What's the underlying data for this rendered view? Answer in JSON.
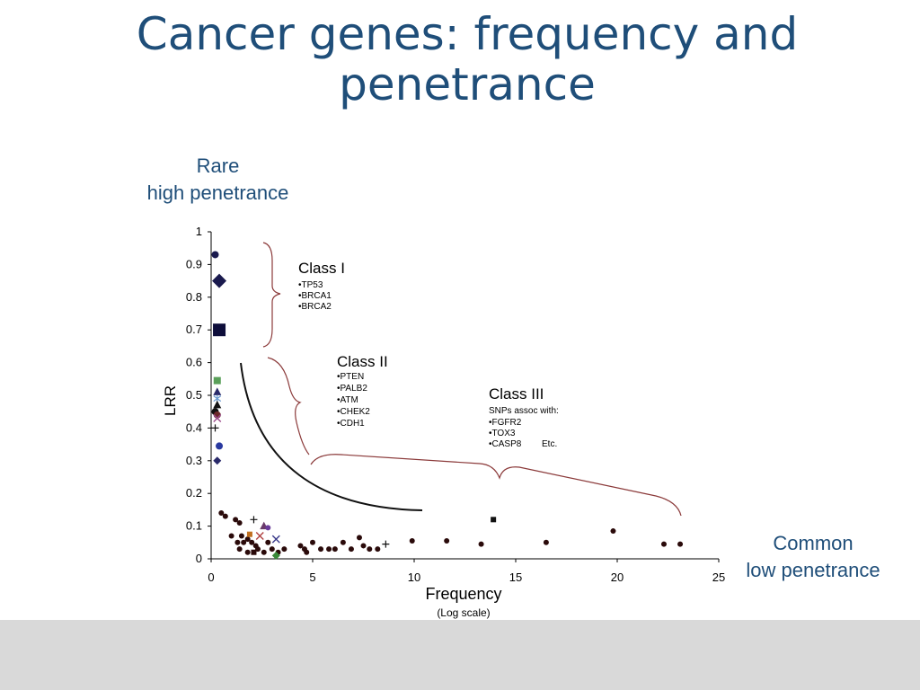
{
  "slide": {
    "title_line1": "Cancer genes: frequency and",
    "title_line2": "penetrance",
    "note_rare_line1": "Rare",
    "note_rare_line2": "high penetrance",
    "note_common_line1": "Common",
    "note_common_line2": "low penetrance"
  },
  "colors": {
    "title": "#1F4E79",
    "bracket": "#8B3A3A",
    "footer": "#d9d9d9"
  },
  "chart_data": {
    "type": "scatter",
    "xlabel": "Frequency",
    "xlabel_sub": "(Log scale)",
    "ylabel": "LRR",
    "xlim": [
      0,
      25
    ],
    "ylim": [
      0,
      1
    ],
    "x_ticks": [
      0,
      5,
      10,
      15,
      20,
      25
    ],
    "y_ticks": [
      0,
      0.1,
      0.2,
      0.3,
      0.4,
      0.5,
      0.6,
      0.7,
      0.8,
      0.9,
      1
    ],
    "grid": false,
    "annotations": [
      {
        "label": "Class I",
        "items": [
          "•TP53",
          "•BRCA1",
          "•BRCA2"
        ]
      },
      {
        "label": "Class II",
        "items": [
          "•PTEN",
          "•PALB2",
          "•ATM",
          "•CHEK2",
          "•CDH1"
        ]
      },
      {
        "label": "Class III",
        "subtitle": "SNPs assoc with:",
        "items": [
          "•FGFR2",
          "•TOX3",
          "•CASP8"
        ],
        "extra": "Etc."
      }
    ],
    "points": [
      {
        "x": 0.2,
        "y": 0.93,
        "shape": "circle",
        "color": "#1a1a4e"
      },
      {
        "x": 0.4,
        "y": 0.85,
        "shape": "diamond",
        "color": "#1a1a4e"
      },
      {
        "x": 0.4,
        "y": 0.7,
        "shape": "square",
        "color": "#0d0d3a"
      },
      {
        "x": 0.3,
        "y": 0.545,
        "shape": "square",
        "color": "#5aa05a"
      },
      {
        "x": 0.3,
        "y": 0.51,
        "shape": "triangle",
        "color": "#2a2a6a"
      },
      {
        "x": 0.3,
        "y": 0.49,
        "shape": "cross",
        "color": "#6a9ad0"
      },
      {
        "x": 0.3,
        "y": 0.47,
        "shape": "triangle",
        "color": "#111111"
      },
      {
        "x": 0.2,
        "y": 0.45,
        "shape": "circle",
        "color": "#111111"
      },
      {
        "x": 0.3,
        "y": 0.44,
        "shape": "circle",
        "color": "#6b2a2a"
      },
      {
        "x": 0.3,
        "y": 0.43,
        "shape": "x",
        "color": "#9a4a8a"
      },
      {
        "x": 0.2,
        "y": 0.4,
        "shape": "plus",
        "color": "#111111"
      },
      {
        "x": 0.4,
        "y": 0.345,
        "shape": "circle",
        "color": "#2a3aa0"
      },
      {
        "x": 0.3,
        "y": 0.3,
        "shape": "diamond",
        "color": "#2a2a6a"
      },
      {
        "x": 0.5,
        "y": 0.14,
        "shape": "circle",
        "color": "#2a0a0a"
      },
      {
        "x": 0.7,
        "y": 0.13,
        "shape": "circle",
        "color": "#2a0a0a"
      },
      {
        "x": 1.2,
        "y": 0.12,
        "shape": "circle",
        "color": "#2a0a0a"
      },
      {
        "x": 1.4,
        "y": 0.11,
        "shape": "circle",
        "color": "#2a0a0a"
      },
      {
        "x": 2.1,
        "y": 0.12,
        "shape": "plus",
        "color": "#111111"
      },
      {
        "x": 1.0,
        "y": 0.07,
        "shape": "circle",
        "color": "#2a0a0a"
      },
      {
        "x": 1.5,
        "y": 0.07,
        "shape": "circle",
        "color": "#2a0a0a"
      },
      {
        "x": 1.8,
        "y": 0.06,
        "shape": "circle",
        "color": "#2a0a0a"
      },
      {
        "x": 1.9,
        "y": 0.075,
        "shape": "square",
        "color": "#c07020"
      },
      {
        "x": 2.6,
        "y": 0.1,
        "shape": "triangle",
        "color": "#6a3a6a"
      },
      {
        "x": 2.8,
        "y": 0.095,
        "shape": "circle",
        "color": "#6a3a9a"
      },
      {
        "x": 2.4,
        "y": 0.07,
        "shape": "x",
        "color": "#b04040"
      },
      {
        "x": 3.2,
        "y": 0.06,
        "shape": "x",
        "color": "#3a3a8a"
      },
      {
        "x": 1.3,
        "y": 0.05,
        "shape": "circle",
        "color": "#2a0a0a"
      },
      {
        "x": 1.6,
        "y": 0.05,
        "shape": "circle",
        "color": "#2a0a0a"
      },
      {
        "x": 2.0,
        "y": 0.05,
        "shape": "circle",
        "color": "#2a0a0a"
      },
      {
        "x": 2.2,
        "y": 0.04,
        "shape": "circle",
        "color": "#2a0a0a"
      },
      {
        "x": 2.8,
        "y": 0.05,
        "shape": "circle",
        "color": "#2a0a0a"
      },
      {
        "x": 1.4,
        "y": 0.03,
        "shape": "circle",
        "color": "#2a0a0a"
      },
      {
        "x": 1.8,
        "y": 0.02,
        "shape": "circle",
        "color": "#2a0a0a"
      },
      {
        "x": 2.3,
        "y": 0.03,
        "shape": "circle",
        "color": "#2a0a0a"
      },
      {
        "x": 2.6,
        "y": 0.02,
        "shape": "circle",
        "color": "#2a0a0a"
      },
      {
        "x": 3.0,
        "y": 0.03,
        "shape": "circle",
        "color": "#2a0a0a"
      },
      {
        "x": 3.3,
        "y": 0.02,
        "shape": "circle",
        "color": "#2a0a0a"
      },
      {
        "x": 3.6,
        "y": 0.03,
        "shape": "circle",
        "color": "#2a0a0a"
      },
      {
        "x": 2.1,
        "y": 0.02,
        "shape": "square",
        "color": "#2a0a0a"
      },
      {
        "x": 3.2,
        "y": 0.01,
        "shape": "diamond",
        "color": "#3a8a3a"
      },
      {
        "x": 4.4,
        "y": 0.04,
        "shape": "circle",
        "color": "#2a0a0a"
      },
      {
        "x": 4.6,
        "y": 0.03,
        "shape": "circle",
        "color": "#2a0a0a"
      },
      {
        "x": 4.7,
        "y": 0.02,
        "shape": "circle",
        "color": "#2a0a0a"
      },
      {
        "x": 5.0,
        "y": 0.05,
        "shape": "circle",
        "color": "#2a0a0a"
      },
      {
        "x": 5.4,
        "y": 0.03,
        "shape": "circle",
        "color": "#2a0a0a"
      },
      {
        "x": 5.8,
        "y": 0.03,
        "shape": "circle",
        "color": "#2a0a0a"
      },
      {
        "x": 6.1,
        "y": 0.03,
        "shape": "circle",
        "color": "#2a0a0a"
      },
      {
        "x": 6.5,
        "y": 0.05,
        "shape": "circle",
        "color": "#2a0a0a"
      },
      {
        "x": 6.9,
        "y": 0.03,
        "shape": "circle",
        "color": "#2a0a0a"
      },
      {
        "x": 7.3,
        "y": 0.065,
        "shape": "circle",
        "color": "#2a0a0a"
      },
      {
        "x": 7.5,
        "y": 0.04,
        "shape": "circle",
        "color": "#2a0a0a"
      },
      {
        "x": 7.8,
        "y": 0.03,
        "shape": "circle",
        "color": "#2a0a0a"
      },
      {
        "x": 8.2,
        "y": 0.03,
        "shape": "circle",
        "color": "#2a0a0a"
      },
      {
        "x": 8.6,
        "y": 0.045,
        "shape": "plus",
        "color": "#111111"
      },
      {
        "x": 9.9,
        "y": 0.055,
        "shape": "circle",
        "color": "#2a0a0a"
      },
      {
        "x": 11.6,
        "y": 0.055,
        "shape": "circle",
        "color": "#2a0a0a"
      },
      {
        "x": 13.3,
        "y": 0.045,
        "shape": "circle",
        "color": "#2a0a0a"
      },
      {
        "x": 13.9,
        "y": 0.12,
        "shape": "square",
        "color": "#111111"
      },
      {
        "x": 16.5,
        "y": 0.05,
        "shape": "circle",
        "color": "#2a0a0a"
      },
      {
        "x": 19.8,
        "y": 0.085,
        "shape": "circle",
        "color": "#2a0a0a"
      },
      {
        "x": 22.3,
        "y": 0.045,
        "shape": "circle",
        "color": "#2a0a0a"
      },
      {
        "x": 23.1,
        "y": 0.045,
        "shape": "circle",
        "color": "#2a0a0a"
      }
    ]
  }
}
